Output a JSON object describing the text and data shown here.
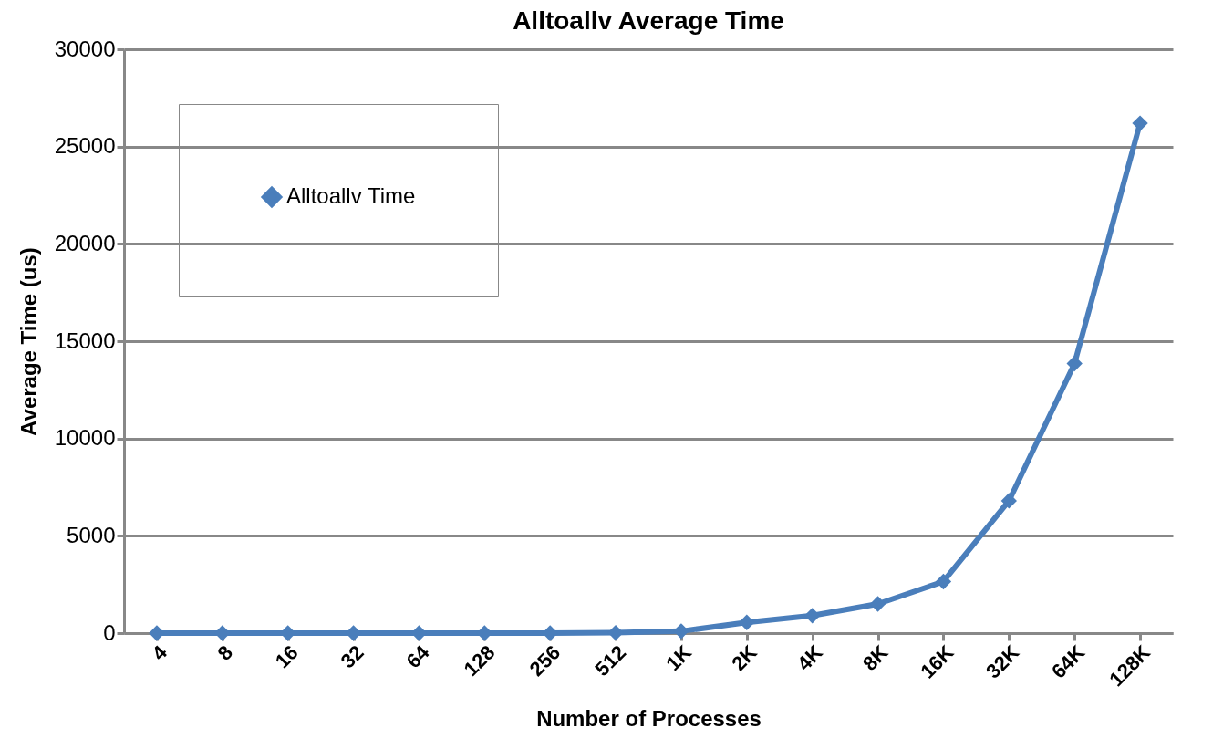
{
  "chart_data": {
    "type": "line",
    "title": "Alltoallv Average Time",
    "xlabel": "Number of Processes",
    "ylabel": "Average Time (us)",
    "categories": [
      "4",
      "8",
      "16",
      "32",
      "64",
      "128",
      "256",
      "512",
      "1K",
      "2K",
      "4K",
      "8K",
      "16K",
      "32K",
      "64K",
      "128K"
    ],
    "series": [
      {
        "name": "Alltoallv Time",
        "color": "#4a7ebb",
        "values": [
          0,
          0,
          0,
          0,
          0,
          0,
          0,
          20,
          100,
          550,
          900,
          1500,
          2650,
          6800,
          13850,
          26200
        ]
      }
    ],
    "ylim": [
      0,
      30000
    ],
    "yticks": [
      0,
      5000,
      10000,
      15000,
      20000,
      25000,
      30000
    ],
    "grid": "y",
    "legend": "top left",
    "marker": "diamond",
    "line_style": "solid"
  }
}
